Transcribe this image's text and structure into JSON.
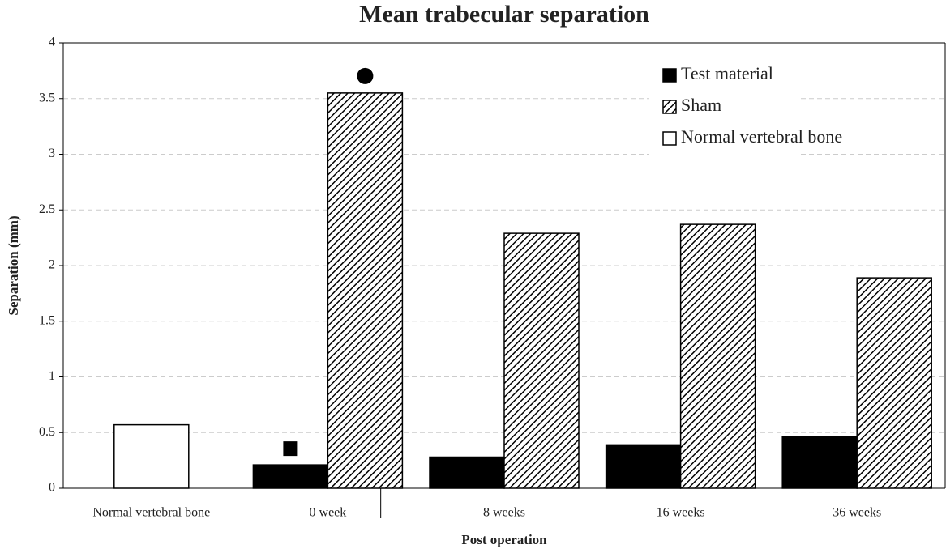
{
  "chart_data": {
    "type": "bar",
    "title": "Mean trabecular separation",
    "x_label": "Post operation",
    "y_label": "Separation (mm)",
    "categories": [
      "Normal vertebral bone",
      "0 week",
      "8 weeks",
      "16 weeks",
      "36 weeks"
    ],
    "series": [
      {
        "name": "Test material",
        "color": "#000000",
        "pattern": "solid",
        "values": [
          null,
          0.21,
          0.28,
          0.39,
          0.46
        ]
      },
      {
        "name": "Sham",
        "color": "#000000",
        "pattern": "diagonal-hatch",
        "values": [
          null,
          3.55,
          2.29,
          2.37,
          1.89
        ]
      },
      {
        "name": "Normal vertebral bone",
        "color": "#ffffff",
        "pattern": "solid",
        "values": [
          0.57,
          null,
          null,
          null,
          null
        ]
      }
    ],
    "ylim": [
      0,
      4
    ],
    "yticks": [
      0,
      0.5,
      1,
      1.5,
      2,
      2.5,
      3,
      3.5,
      4
    ],
    "grid": true,
    "legend": "upper right"
  }
}
